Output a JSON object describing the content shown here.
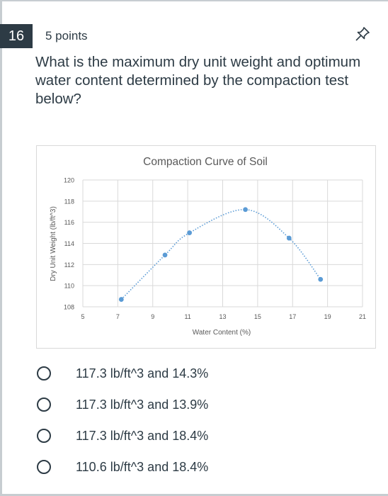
{
  "question": {
    "number": "16",
    "points": "5 points",
    "text": "What is the maximum dry unit weight and optimum water content determined by the compaction test below?"
  },
  "icons": {
    "pin": "pin-icon"
  },
  "colors": {
    "badge": "#2d3b45",
    "series": "#5b9bd5",
    "grid": "#d9d9d9"
  },
  "chart_data": {
    "type": "scatter",
    "title": "Compaction Curve of Soil",
    "xlabel": "Water Content (%)",
    "ylabel": "Dry Unit Weight (lb/ft^3)",
    "xlim": [
      5,
      21
    ],
    "ylim": [
      108,
      120
    ],
    "xticks": [
      5,
      7,
      9,
      11,
      13,
      15,
      17,
      19,
      21
    ],
    "yticks": [
      108,
      110,
      112,
      114,
      116,
      118,
      120
    ],
    "grid": true,
    "smooth_line": true,
    "points": [
      {
        "x": 7.2,
        "y": 108.7
      },
      {
        "x": 9.7,
        "y": 112.9
      },
      {
        "x": 11.1,
        "y": 115.0
      },
      {
        "x": 14.3,
        "y": 117.2
      },
      {
        "x": 16.8,
        "y": 114.5
      },
      {
        "x": 18.6,
        "y": 110.6
      }
    ]
  },
  "answers": [
    {
      "label": "117.3 lb/ft^3 and 14.3%"
    },
    {
      "label": "117.3 lb/ft^3 and 13.9%"
    },
    {
      "label": "117.3 lb/ft^3 and 18.4%"
    },
    {
      "label": "110.6 lb/ft^3 and 18.4%"
    }
  ]
}
